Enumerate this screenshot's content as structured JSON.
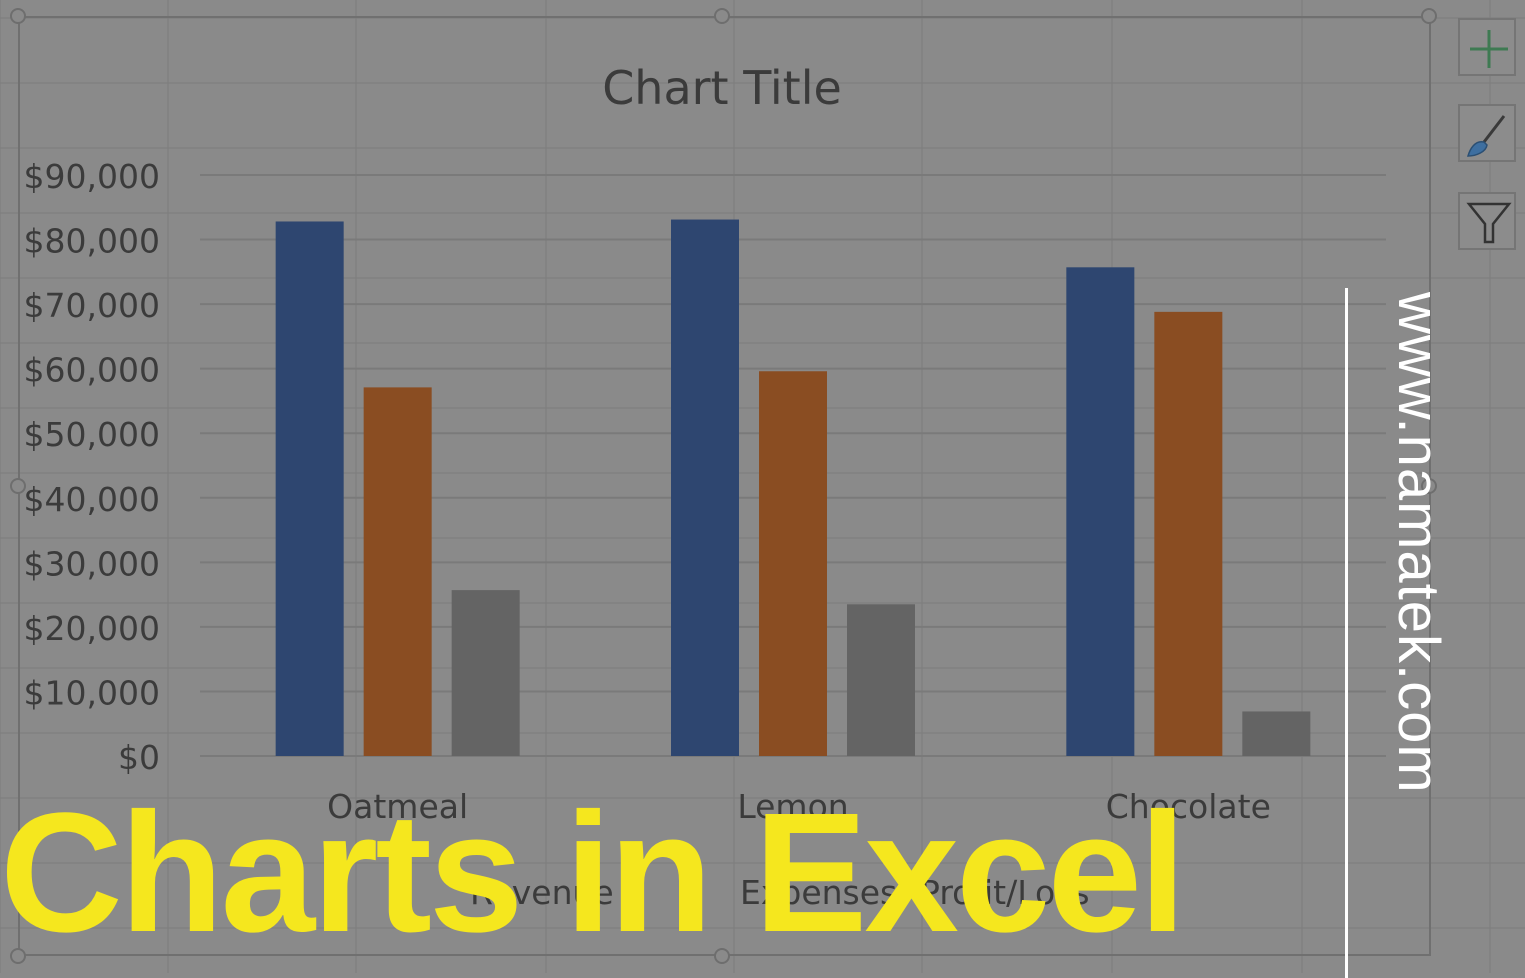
{
  "chart_data": {
    "type": "bar",
    "title": "Chart Title",
    "categories": [
      "Oatmeal",
      "Lemon",
      "Chocolate"
    ],
    "series": [
      {
        "name": "Revenue",
        "values": [
          82800,
          83100,
          75700
        ],
        "color": "#2e4670"
      },
      {
        "name": "Expenses",
        "values": [
          57100,
          59600,
          68800
        ],
        "color": "#8a4d22"
      },
      {
        "name": "Profit/Loss",
        "values": [
          25700,
          23500,
          6900
        ],
        "color": "#646464"
      }
    ],
    "y_ticks": [
      "$0",
      "$10,000",
      "$20,000",
      "$30,000",
      "$40,000",
      "$50,000",
      "$60,000",
      "$70,000",
      "$80,000",
      "$90,000"
    ],
    "ylim": [
      0,
      90000
    ],
    "grid": true,
    "legend_position": "bottom"
  },
  "legend_visible": [
    "Revenue",
    "Expenses",
    "Profit/Loss"
  ],
  "legend_visible_text": [
    "Reven",
    "Exp",
    "nses",
    "Pr",
    "it/Lo"
  ],
  "side_buttons": {
    "chart_elements": "plus-icon",
    "chart_styles": "brush-icon",
    "chart_filters": "filter-icon"
  },
  "watermark": "www.namatek.com",
  "headline": "Charts in Excel",
  "colors": {
    "headline": "#f5e71e",
    "watermark": "#ffffff",
    "background": "#8a8a8a"
  }
}
